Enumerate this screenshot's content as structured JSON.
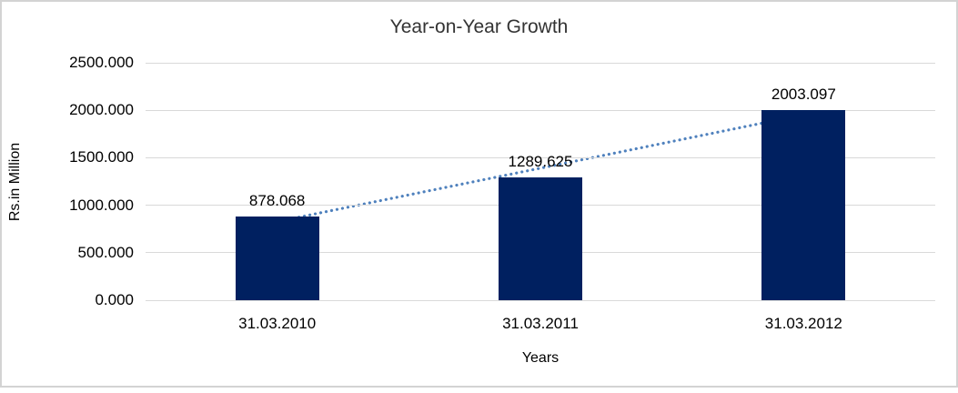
{
  "chart_data": {
    "type": "bar",
    "title": "Year-on-Year Growth",
    "xlabel": "Years",
    "ylabel": "Rs.in Million",
    "categories": [
      "31.03.2010",
      "31.03.2011",
      "31.03.2012"
    ],
    "values": [
      878.068,
      1289.625,
      2003.097
    ],
    "data_labels": [
      "878.068",
      "1289.625",
      "2003.097"
    ],
    "ytick_labels": [
      "0.000",
      "500.000",
      "1000.000",
      "1500.000",
      "2000.000",
      "2500.000"
    ],
    "ytick_values": [
      0,
      500,
      1000,
      1500,
      2000,
      2500
    ],
    "ylim": [
      0,
      2500
    ],
    "grid": "horizontal",
    "legend": "none",
    "trendline": {
      "type": "linear",
      "style": "dotted"
    },
    "colors": {
      "bar": "#002060",
      "trendline": "#4f81bd",
      "gridline": "#d9d9d9",
      "frame_border": "#d3d3d3",
      "text": "#000000",
      "background": "#ffffff"
    }
  }
}
